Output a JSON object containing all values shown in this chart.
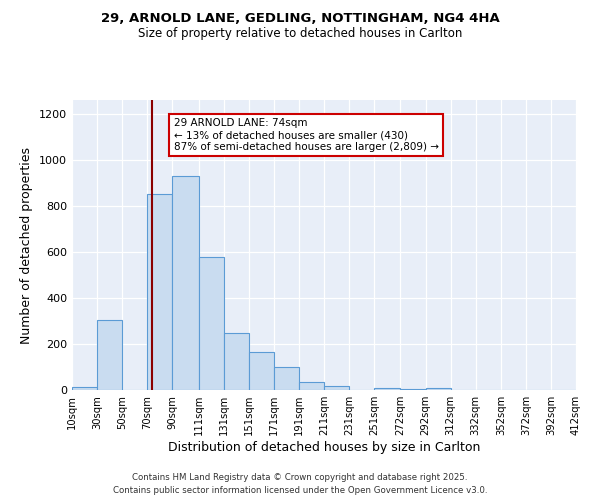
{
  "title1": "29, ARNOLD LANE, GEDLING, NOTTINGHAM, NG4 4HA",
  "title2": "Size of property relative to detached houses in Carlton",
  "xlabel": "Distribution of detached houses by size in Carlton",
  "ylabel": "Number of detached properties",
  "bar_labels": [
    "10sqm",
    "30sqm",
    "50sqm",
    "70sqm",
    "90sqm",
    "111sqm",
    "131sqm",
    "151sqm",
    "171sqm",
    "191sqm",
    "211sqm",
    "231sqm",
    "251sqm",
    "272sqm",
    "292sqm",
    "312sqm",
    "332sqm",
    "352sqm",
    "372sqm",
    "392sqm",
    "412sqm"
  ],
  "bar_values": [
    15,
    305,
    0,
    850,
    930,
    580,
    248,
    163,
    100,
    35,
    17,
    0,
    8,
    5,
    8,
    0,
    0,
    0,
    0,
    0
  ],
  "bar_color": "#c9dcf0",
  "bar_edge_color": "#5b9bd5",
  "vline_x": 74,
  "vline_color": "#8b0000",
  "ylim": [
    0,
    1260
  ],
  "yticks": [
    0,
    200,
    400,
    600,
    800,
    1000,
    1200
  ],
  "annotation_title": "29 ARNOLD LANE: 74sqm",
  "annotation_line1": "← 13% of detached houses are smaller (430)",
  "annotation_line2": "87% of semi-detached houses are larger (2,809) →",
  "annotation_box_color": "#ffffff",
  "annotation_box_edge_color": "#cc0000",
  "footnote1": "Contains HM Land Registry data © Crown copyright and database right 2025.",
  "footnote2": "Contains public sector information licensed under the Open Government Licence v3.0.",
  "bg_color": "#e8eef8",
  "fig_bg_color": "#ffffff",
  "bin_starts": [
    10,
    30,
    50,
    70,
    90,
    111,
    131,
    151,
    171,
    191,
    211,
    231,
    251,
    272,
    292,
    312,
    332,
    352,
    372,
    392
  ]
}
